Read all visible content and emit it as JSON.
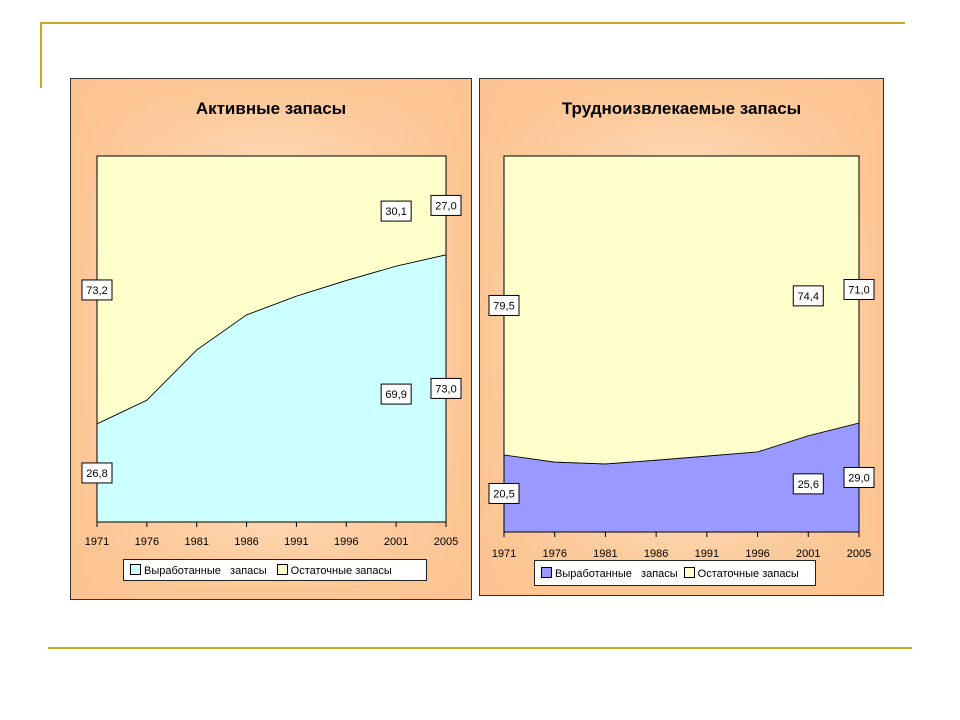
{
  "chart_data": [
    {
      "type": "area",
      "stacked": true,
      "percent": true,
      "title": "Активные запасы",
      "categories": [
        "1971",
        "1976",
        "1981",
        "1986",
        "1991",
        "1996",
        "2001",
        "2005"
      ],
      "series": [
        {
          "name": "Выработанные   запасы",
          "color": "#ccffff",
          "values": [
            26.8,
            33.3,
            47.0,
            56.6,
            61.7,
            66.0,
            69.9,
            73.0
          ]
        },
        {
          "name": "Остаточные запасы",
          "color": "#ffffcc",
          "values": [
            73.2,
            66.7,
            53.0,
            43.4,
            38.3,
            34.0,
            30.1,
            27.0
          ]
        }
      ],
      "data_labels": {
        "Выработанные": {
          "1971": "26,8",
          "2001": "69,9",
          "2005": "73,0"
        },
        "Остаточные": {
          "1971": "73,2",
          "2001": "30,1",
          "2005": "27,0"
        }
      },
      "ylim": [
        0,
        100
      ],
      "legend": "bottom"
    },
    {
      "type": "area",
      "stacked": true,
      "percent": true,
      "title": "Трудноизвлекаемые запасы",
      "categories": [
        "1971",
        "1976",
        "1981",
        "1986",
        "1991",
        "1996",
        "2001",
        "2005"
      ],
      "series": [
        {
          "name": "Выработанные   запасы",
          "color": "#9999ff",
          "values": [
            20.5,
            18.6,
            18.1,
            19.1,
            20.2,
            21.3,
            25.6,
            29.0
          ]
        },
        {
          "name": "Остаточные запасы",
          "color": "#ffffcc",
          "values": [
            79.5,
            81.4,
            81.9,
            80.9,
            79.8,
            78.7,
            74.4,
            71.0
          ]
        }
      ],
      "data_labels": {
        "Выработанные": {
          "1971": "20,5",
          "2001": "25,6",
          "2005": "29,0"
        },
        "Остаточные": {
          "1971": "79,5",
          "2001": "74,4",
          "2005": "71,0"
        }
      },
      "ylim": [
        0,
        100
      ],
      "legend": "bottom"
    }
  ]
}
